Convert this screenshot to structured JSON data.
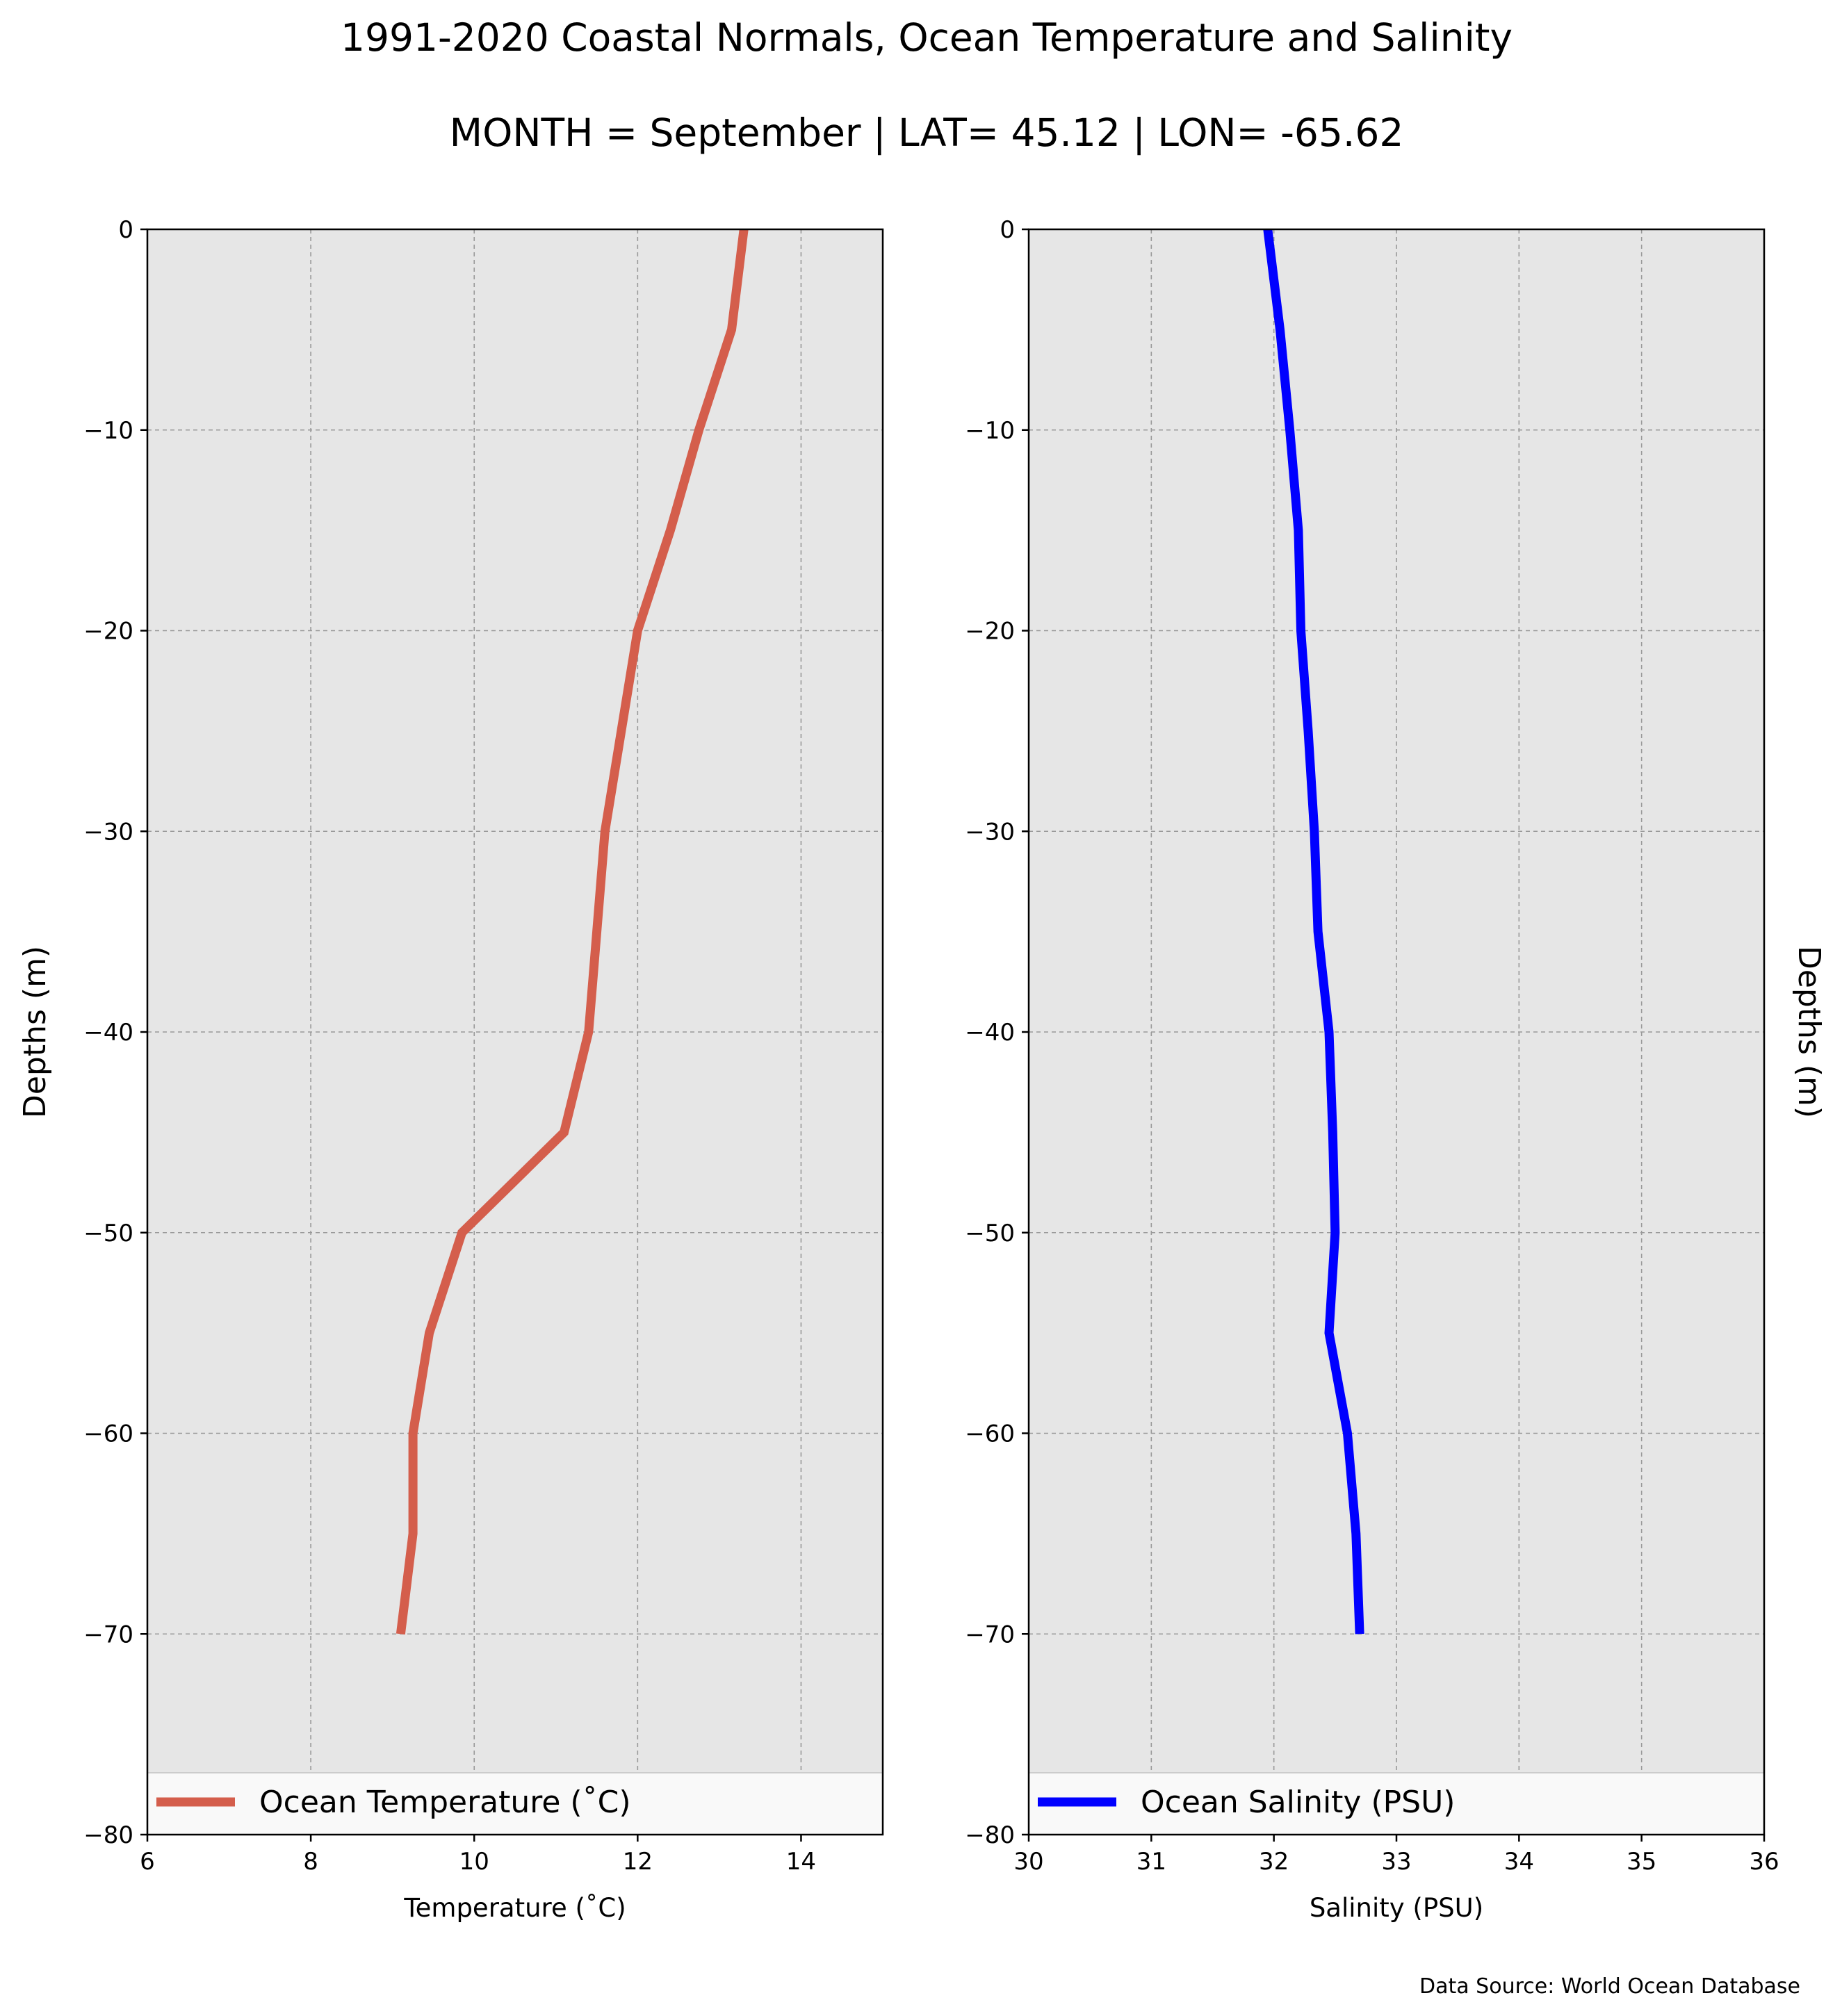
{
  "figure": {
    "title_line1": "1991-2020 Coastal Normals, Ocean Temperature and Salinity",
    "title_line2": "MONTH = September | LAT= 45.12 | LON= -65.62",
    "source": "Data Source: World Ocean Database"
  },
  "chart_data": [
    {
      "type": "line",
      "xlabel": "Temperature ($^\\circ$C)",
      "xlabel_display": "Temperature (˚C)",
      "ylabel": "Depths (m)",
      "xlim": [
        6,
        15
      ],
      "ylim": [
        -80,
        0
      ],
      "xticks": [
        "6",
        "8",
        "10",
        "12",
        "14"
      ],
      "yticks": [
        "0",
        "−10",
        "−20",
        "−30",
        "−40",
        "−50",
        "−60",
        "−70",
        "−80"
      ],
      "grid": true,
      "background": "#e6e6e6",
      "legend_position": "bottom",
      "series": [
        {
          "name": "Ocean Temperature (˚C)",
          "color": "#d45e4c",
          "x": [
            13.3,
            13.15,
            12.75,
            12.4,
            12.0,
            11.8,
            11.6,
            11.5,
            11.4,
            11.1,
            9.85,
            9.45,
            9.25,
            9.25,
            9.1
          ],
          "y": [
            0,
            -5,
            -10,
            -15,
            -20,
            -25,
            -30,
            -35,
            -40,
            -45,
            -50,
            -55,
            -60,
            -65,
            -70
          ]
        }
      ]
    },
    {
      "type": "line",
      "xlabel": "Salinity (PSU)",
      "ylabel": "Depths (m)",
      "xlim": [
        30,
        36
      ],
      "ylim": [
        -80,
        0
      ],
      "xticks": [
        "30",
        "31",
        "32",
        "33",
        "34",
        "35",
        "36"
      ],
      "yticks": [
        "0",
        "−10",
        "−20",
        "−30",
        "−40",
        "−50",
        "−60",
        "−70",
        "−80"
      ],
      "grid": true,
      "background": "#e6e6e6",
      "legend_position": "bottom",
      "series": [
        {
          "name": "Ocean Salinity (PSU)",
          "color": "#0000ff",
          "x": [
            31.95,
            32.05,
            32.13,
            32.2,
            32.22,
            32.28,
            32.33,
            32.36,
            32.45,
            32.48,
            32.5,
            32.45,
            32.6,
            32.67,
            32.7
          ],
          "y": [
            0,
            -5,
            -10,
            -15,
            -20,
            -25,
            -30,
            -35,
            -40,
            -45,
            -50,
            -55,
            -60,
            -65,
            -70
          ]
        }
      ]
    }
  ]
}
